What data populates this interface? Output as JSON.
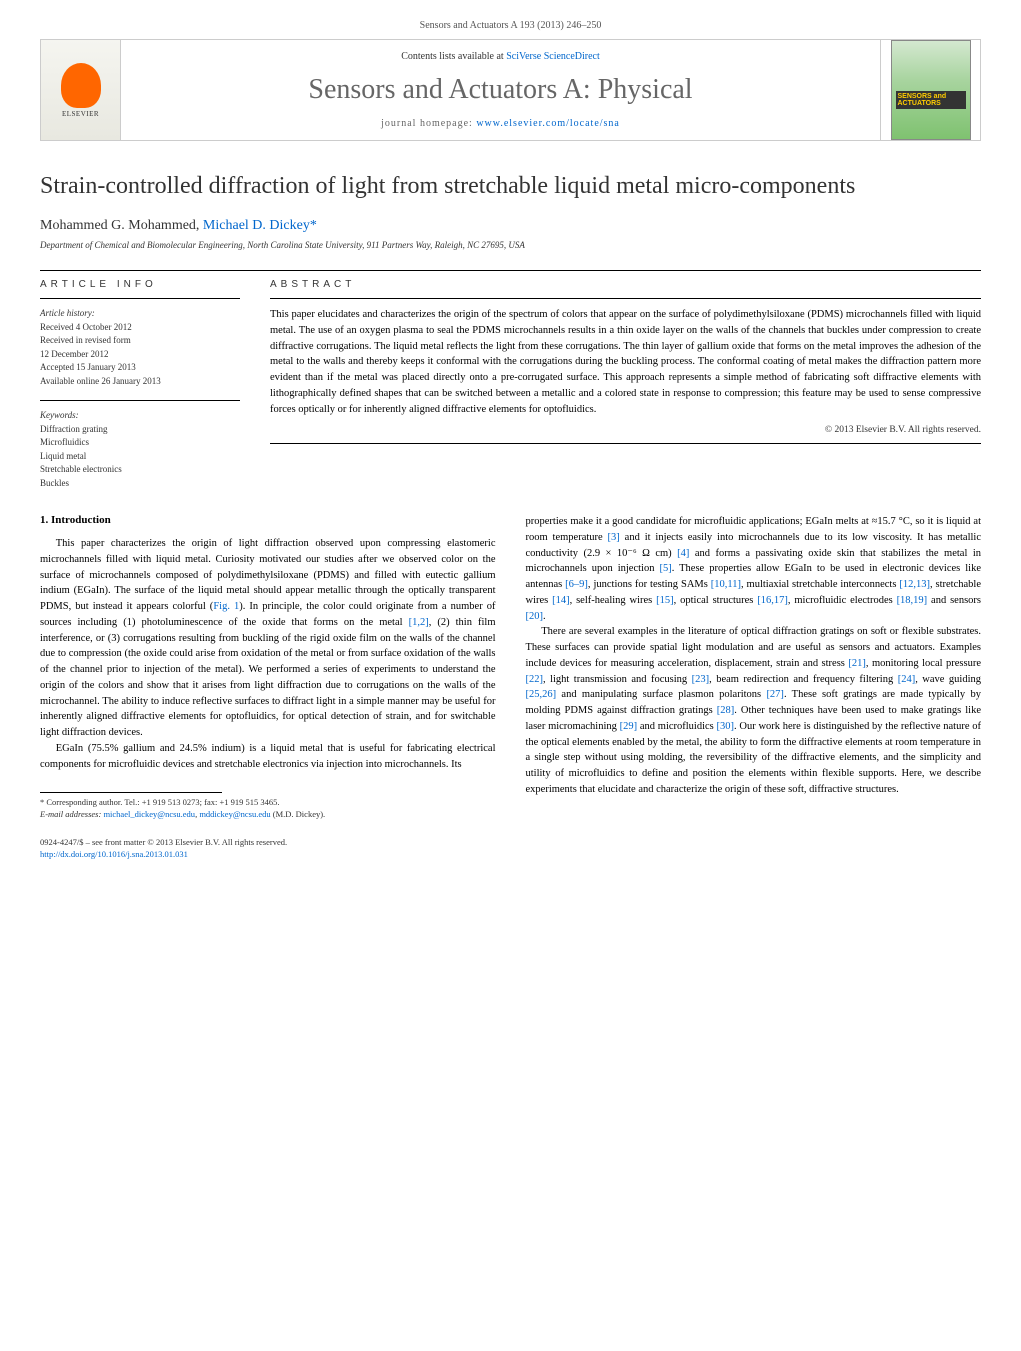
{
  "header": {
    "citation": "Sensors and Actuators A 193 (2013) 246–250",
    "contents_prefix": "Contents lists available at ",
    "contents_link": "SciVerse ScienceDirect",
    "journal_name": "Sensors and Actuators A: Physical",
    "homepage_prefix": "journal homepage: ",
    "homepage_url": "www.elsevier.com/locate/sna",
    "elsevier_label": "ELSEVIER",
    "cover_label_1": "SENSORS and",
    "cover_label_2": "ACTUATORS"
  },
  "article": {
    "title": "Strain-controlled diffraction of light from stretchable liquid metal micro-components",
    "authors_plain": "Mohammed G. Mohammed, ",
    "authors_corresponding": "Michael D. Dickey",
    "authors_marker": "*",
    "affiliation": "Department of Chemical and Biomolecular Engineering, North Carolina State University, 911 Partners Way, Raleigh, NC 27695, USA"
  },
  "info": {
    "label": "ARTICLE INFO",
    "history_heading": "Article history:",
    "received": "Received 4 October 2012",
    "revised_1": "Received in revised form",
    "revised_2": "12 December 2012",
    "accepted": "Accepted 15 January 2013",
    "online": "Available online 26 January 2013",
    "keywords_heading": "Keywords:",
    "keywords": [
      "Diffraction grating",
      "Microfluidics",
      "Liquid metal",
      "Stretchable electronics",
      "Buckles"
    ]
  },
  "abstract": {
    "label": "ABSTRACT",
    "text": "This paper elucidates and characterizes the origin of the spectrum of colors that appear on the surface of polydimethylsiloxane (PDMS) microchannels filled with liquid metal. The use of an oxygen plasma to seal the PDMS microchannels results in a thin oxide layer on the walls of the channels that buckles under compression to create diffractive corrugations. The liquid metal reflects the light from these corrugations. The thin layer of gallium oxide that forms on the metal improves the adhesion of the metal to the walls and thereby keeps it conformal with the corrugations during the buckling process. The conformal coating of metal makes the diffraction pattern more evident than if the metal was placed directly onto a pre-corrugated surface. This approach represents a simple method of fabricating soft diffractive elements with lithographically defined shapes that can be switched between a metallic and a colored state in response to compression; this feature may be used to sense compressive forces optically or for inherently aligned diffractive elements for optofluidics.",
    "copyright": "© 2013 Elsevier B.V. All rights reserved."
  },
  "body": {
    "heading_1": "1. Introduction",
    "col1_p1_a": "This paper characterizes the origin of light diffraction observed upon compressing elastomeric microchannels filled with liquid metal. Curiosity motivated our studies after we observed color on the surface of microchannels composed of polydimethylsiloxane (PDMS) and filled with eutectic gallium indium (EGaIn). The surface of the liquid metal should appear metallic through the optically transparent PDMS, but instead it appears colorful (",
    "col1_fig_ref": "Fig. 1",
    "col1_p1_b": "). In principle, the color could originate from a number of sources including (1) photoluminescence of the oxide that forms on the metal ",
    "col1_ref_12": "[1,2]",
    "col1_p1_c": ", (2) thin film interference, or (3) corrugations resulting from buckling of the rigid oxide film on the walls of the channel due to compression (the oxide could arise from oxidation of the metal or from surface oxidation of the walls of the channel prior to injection of the metal). We performed a series of experiments to understand the origin of the colors and show that it arises from light diffraction due to corrugations on the walls of the microchannel. The ability to induce reflective surfaces to diffract light in a simple manner may be useful for inherently aligned diffractive elements for optofluidics, for optical detection of strain, and for switchable light diffraction devices.",
    "col1_p2": "EGaIn (75.5% gallium and 24.5% indium) is a liquid metal that is useful for fabricating electrical components for microfluidic devices and stretchable electronics via injection into microchannels. Its",
    "col2_p1_a": "properties make it a good candidate for microfluidic applications; EGaIn melts at ≈15.7 °C, so it is liquid at room temperature ",
    "col2_ref_3": "[3]",
    "col2_p1_b": " and it injects easily into microchannels due to its low viscosity. It has metallic conductivity (2.9 × 10⁻⁶ Ω cm) ",
    "col2_ref_4": "[4]",
    "col2_p1_c": " and forms a passivating oxide skin that stabilizes the metal in microchannels upon injection ",
    "col2_ref_5": "[5]",
    "col2_p1_d": ". These properties allow EGaIn to be used in electronic devices like antennas ",
    "col2_ref_69": "[6–9]",
    "col2_p1_e": ", junctions for testing SAMs ",
    "col2_ref_1011": "[10,11]",
    "col2_p1_f": ", multiaxial stretchable interconnects ",
    "col2_ref_1213": "[12,13]",
    "col2_p1_g": ", stretchable wires ",
    "col2_ref_14": "[14]",
    "col2_p1_h": ", self-healing wires ",
    "col2_ref_15": "[15]",
    "col2_p1_i": ", optical structures ",
    "col2_ref_1617": "[16,17]",
    "col2_p1_j": ", microfluidic electrodes ",
    "col2_ref_1819": "[18,19]",
    "col2_p1_k": " and sensors ",
    "col2_ref_20": "[20]",
    "col2_p1_l": ".",
    "col2_p2_a": "There are several examples in the literature of optical diffraction gratings on soft or flexible substrates. These surfaces can provide spatial light modulation and are useful as sensors and actuators. Examples include devices for measuring acceleration, displacement, strain and stress ",
    "col2_ref_21": "[21]",
    "col2_p2_b": ", monitoring local pressure ",
    "col2_ref_22": "[22]",
    "col2_p2_c": ", light transmission and focusing ",
    "col2_ref_23": "[23]",
    "col2_p2_d": ", beam redirection and frequency filtering ",
    "col2_ref_24": "[24]",
    "col2_p2_e": ", wave guiding ",
    "col2_ref_2526": "[25,26]",
    "col2_p2_f": " and manipulating surface plasmon polaritons ",
    "col2_ref_27": "[27]",
    "col2_p2_g": ". These soft gratings are made typically by molding PDMS against diffraction gratings ",
    "col2_ref_28": "[28]",
    "col2_p2_h": ". Other techniques have been used to make gratings like laser micromachining ",
    "col2_ref_29": "[29]",
    "col2_p2_i": " and microfluidics ",
    "col2_ref_30": "[30]",
    "col2_p2_j": ". Our work here is distinguished by the reflective nature of the optical elements enabled by the metal, the ability to form the diffractive elements at room temperature in a single step without using molding, the reversibility of the diffractive elements, and the simplicity and utility of microfluidics to define and position the elements within flexible supports. Here, we describe experiments that elucidate and characterize the origin of these soft, diffractive structures."
  },
  "footnote": {
    "corresponding": "* Corresponding author. Tel.: +1 919 513 0273; fax: +1 919 515 3465.",
    "email_label": "E-mail addresses: ",
    "email_1": "michael_dickey@ncsu.edu",
    "email_sep": ", ",
    "email_2": "mddickey@ncsu.edu",
    "email_suffix": " (M.D. Dickey)."
  },
  "footer": {
    "issn_line": "0924-4247/$ – see front matter © 2013 Elsevier B.V. All rights reserved.",
    "doi": "http://dx.doi.org/10.1016/j.sna.2013.01.031"
  },
  "colors": {
    "link": "#0066cc",
    "text": "#000000",
    "muted": "#333333",
    "border": "#cccccc",
    "elsevier_orange": "#ff6600",
    "cover_green_top": "#d4e8d0",
    "cover_green_bottom": "#7fc270"
  }
}
